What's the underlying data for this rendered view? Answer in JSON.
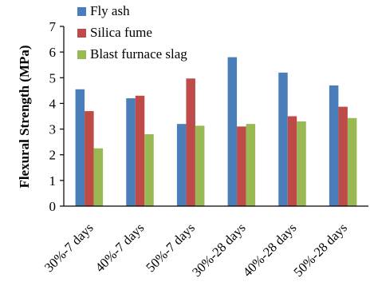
{
  "chart_data": {
    "type": "bar",
    "title": "",
    "xlabel": "",
    "ylabel": "Flexural Strength (MPa)",
    "ylim": [
      0,
      7
    ],
    "yticks": [
      "0",
      "1",
      "2",
      "3",
      "4",
      "5",
      "6",
      "7"
    ],
    "grid": false,
    "legend_position": "top-left",
    "categories": [
      "30%-7 days",
      "40%-7 days",
      "50%-7 days",
      "30%-28 days",
      "40%-28 days",
      "50%-28 days"
    ],
    "series": [
      {
        "name": "Fly ash",
        "color": "#4a7ebb",
        "values": [
          4.55,
          4.2,
          3.2,
          5.8,
          5.2,
          4.7
        ]
      },
      {
        "name": "Silica fume",
        "color": "#be4b48",
        "values": [
          3.7,
          4.3,
          4.97,
          3.1,
          3.5,
          3.87
        ]
      },
      {
        "name": "Blast furnace slag",
        "color": "#98b954",
        "values": [
          2.25,
          2.8,
          3.13,
          3.2,
          3.3,
          3.43
        ]
      }
    ]
  }
}
